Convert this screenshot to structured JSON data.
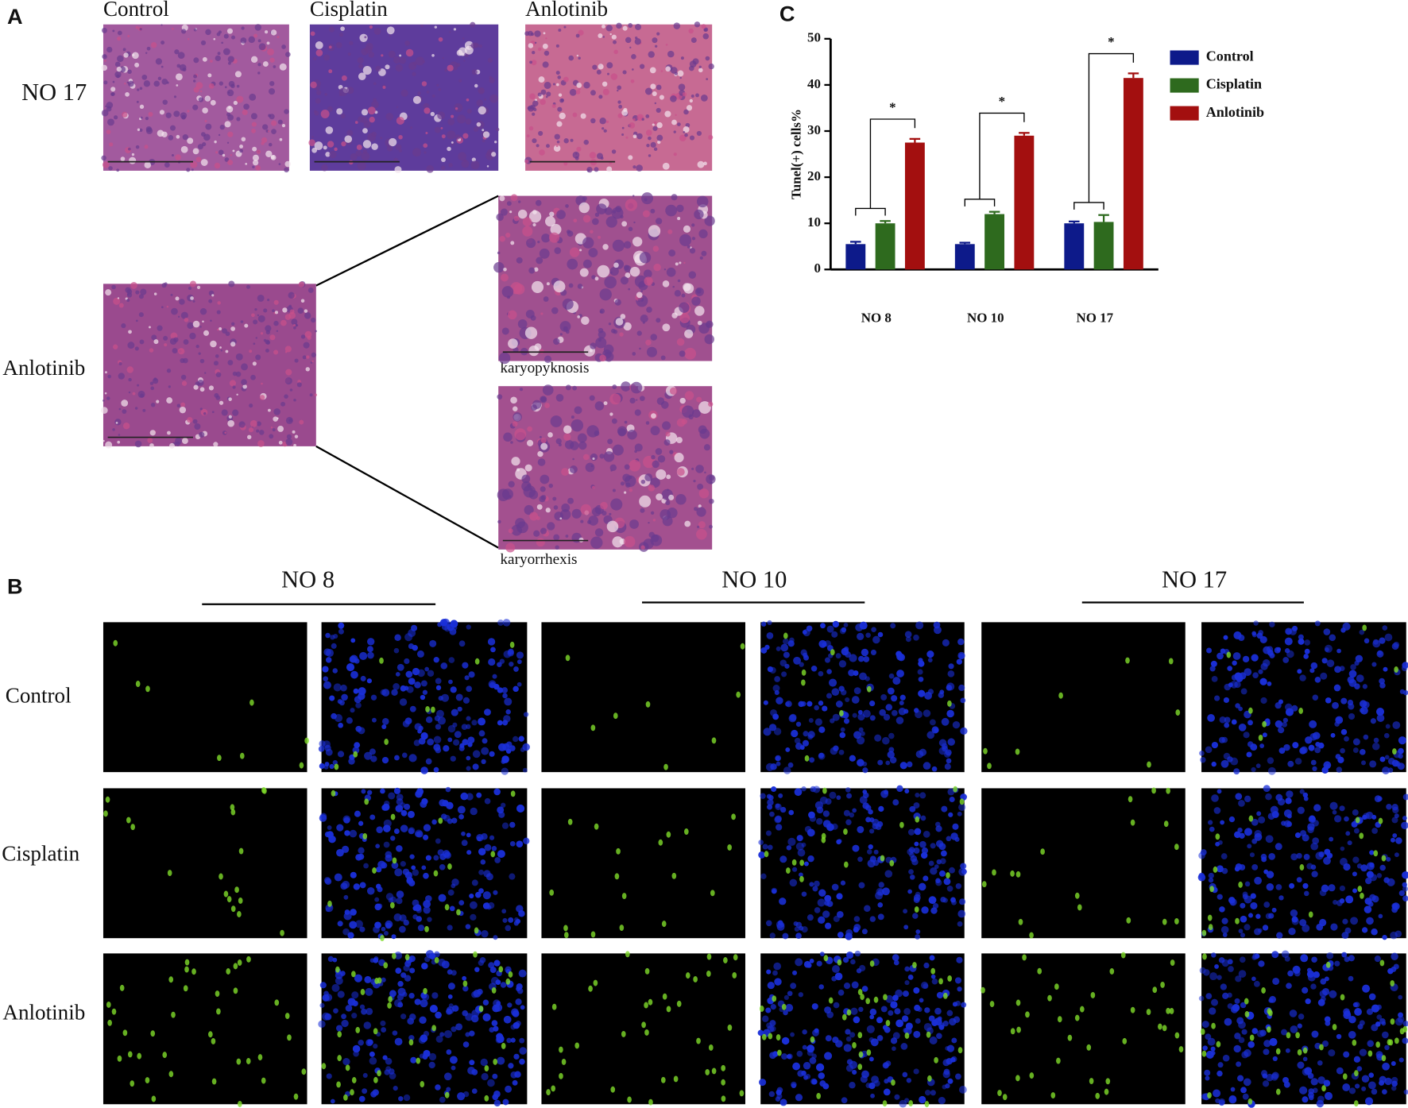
{
  "panel_labels": {
    "a": "A",
    "b": "B",
    "c": "C"
  },
  "panel_a": {
    "columns": [
      "Control",
      "Cisplatin",
      "Anlotinib"
    ],
    "row_label": "NO 17",
    "zoom_label": "Anlotinib",
    "captions": [
      "karyopyknosis",
      "karyorrhexis"
    ]
  },
  "panel_b": {
    "groups": [
      "NO 8",
      "NO 10",
      "NO 17"
    ],
    "rows": [
      "Control",
      "Cisplatin",
      "Anlotinib"
    ]
  },
  "chart_data": {
    "type": "bar",
    "ylabel": "Tunel(+) cells%",
    "categories": [
      "NO 8",
      "NO 10",
      "NO 17"
    ],
    "series": [
      {
        "name": "Control",
        "color": "#0d1a8a",
        "values": [
          5.5,
          5.5,
          10
        ],
        "errors": [
          0.5,
          0.3,
          0.4
        ]
      },
      {
        "name": "Cisplatin",
        "color": "#2e6a1e",
        "values": [
          10,
          12,
          10.3
        ],
        "errors": [
          0.5,
          0.5,
          1.5
        ]
      },
      {
        "name": "Anlotinib",
        "color": "#a30f0f",
        "values": [
          27.5,
          29,
          41.5
        ],
        "errors": [
          0.8,
          0.6,
          1
        ]
      }
    ],
    "annotations": [
      "*",
      "*",
      "*"
    ],
    "ylim": [
      0,
      50
    ],
    "yticks": [
      0,
      10,
      20,
      30,
      40,
      50
    ]
  }
}
